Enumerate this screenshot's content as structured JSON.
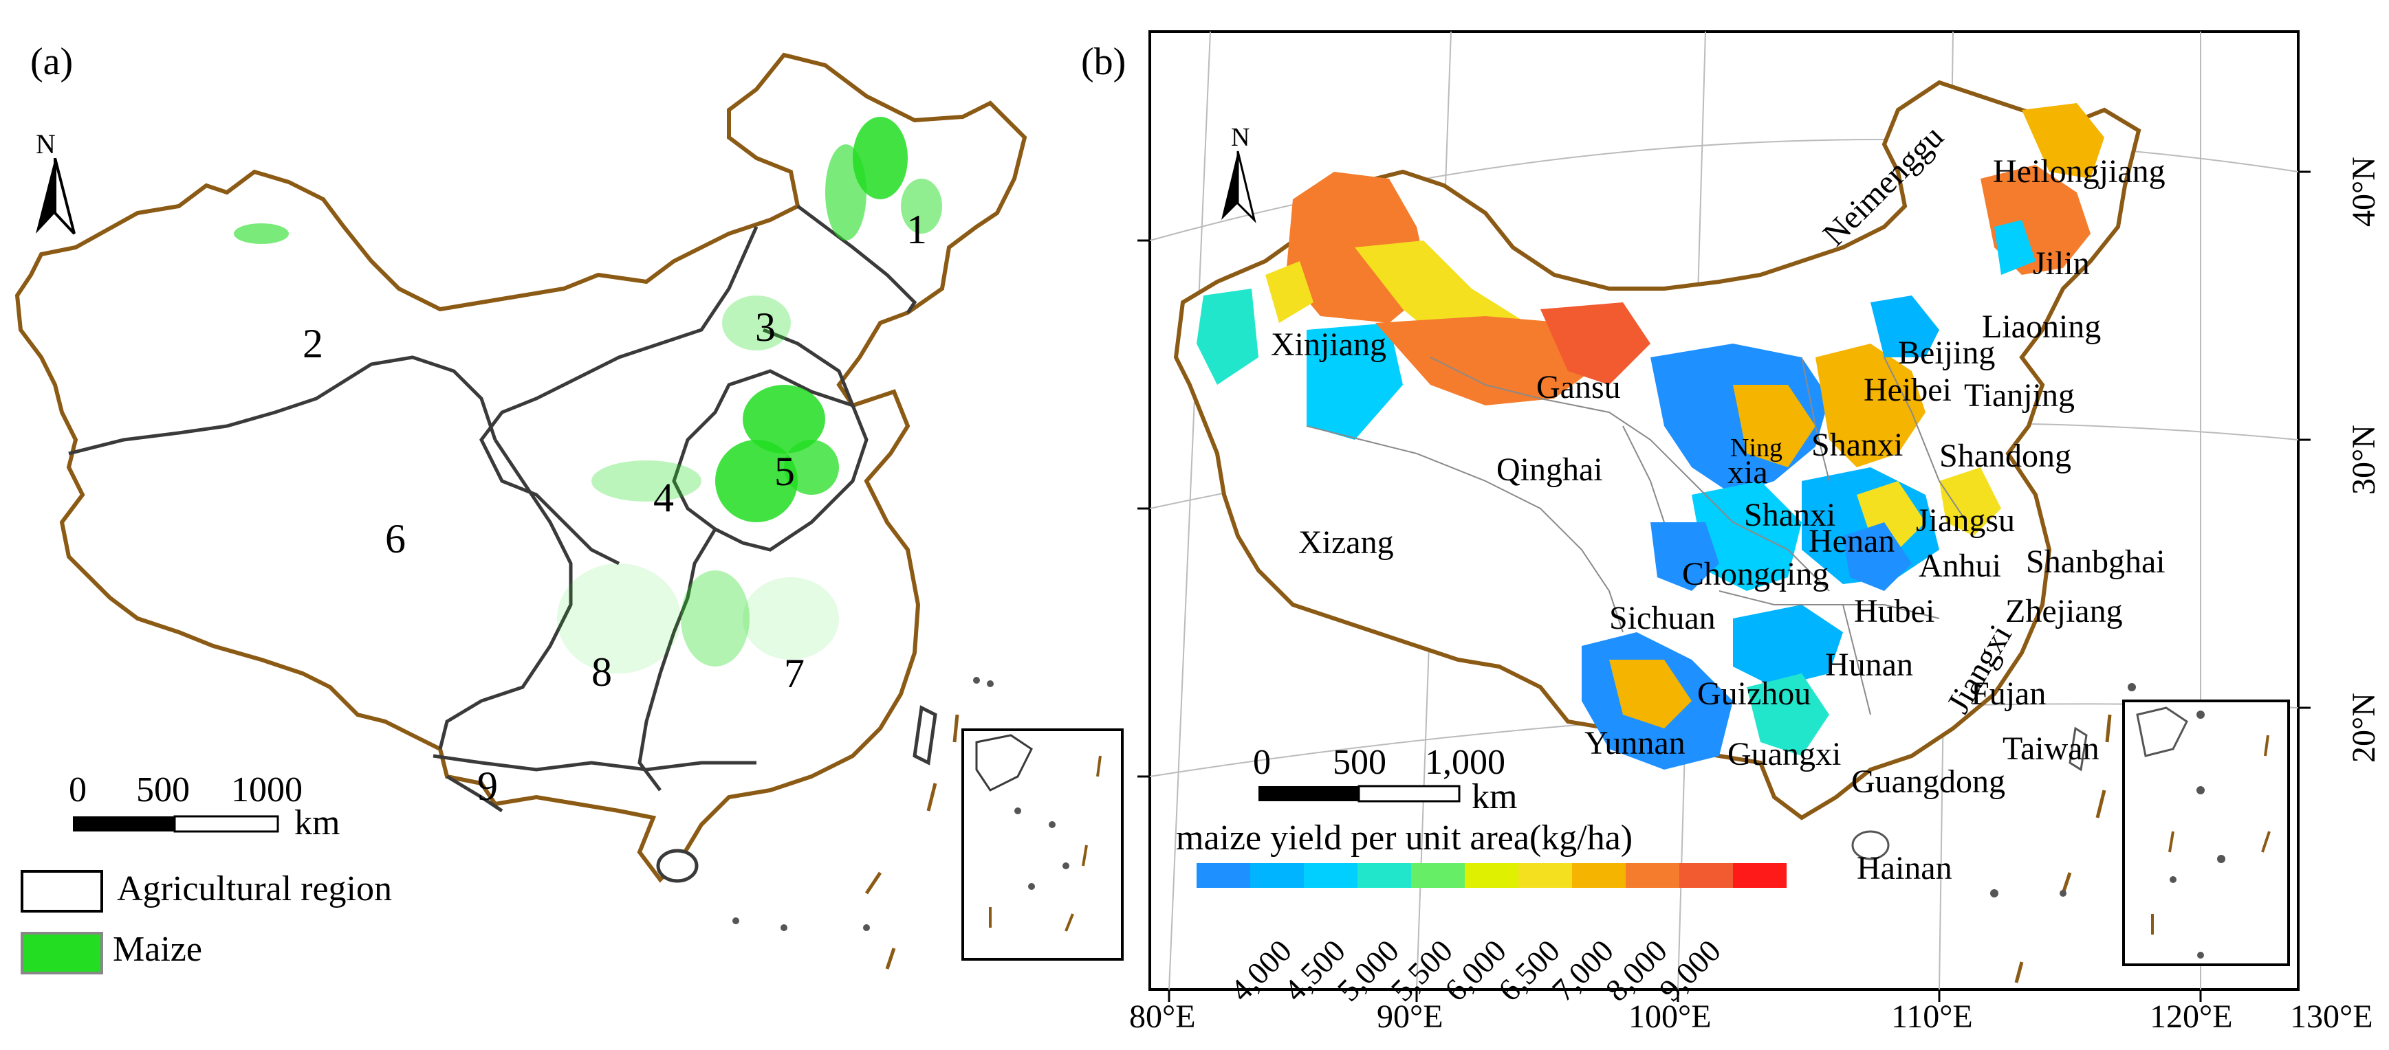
{
  "panel_a": {
    "label": "(a)",
    "north": "N",
    "regions": [
      "1",
      "2",
      "3",
      "4",
      "5",
      "6",
      "7",
      "8",
      "9"
    ],
    "scalebar": {
      "ticks": [
        "0",
        "500",
        "1000"
      ],
      "unit": "km"
    },
    "legend": [
      {
        "label": "Agricultural region",
        "color": "#ffffff"
      },
      {
        "label": "Maize",
        "color": "#22dd22"
      }
    ]
  },
  "panel_b": {
    "label": "(b)",
    "north": "N",
    "provinces": [
      "Heilongjiang",
      "Jilin",
      "Liaoning",
      "Neimenggu",
      "Beijing",
      "Tianjing",
      "Heibei",
      "Shandong",
      "Shanxi",
      "Ning",
      "xia",
      "Gansu",
      "Xinjiang",
      "Qinghai",
      "Xizang",
      "Shanxi",
      "Henan",
      "Jiangsu",
      "Anhui",
      "Shanbghai",
      "Chongqing",
      "Sichuan",
      "Hubei",
      "Zhejiang",
      "Jiangxi",
      "Hunan",
      "Guizhou",
      "Fujan",
      "Yunnan",
      "Guangxi",
      "Taiwan",
      "Guangdong",
      "Hainan"
    ],
    "scalebar": {
      "ticks": [
        "0",
        "500",
        "1,000"
      ],
      "unit": "km"
    },
    "legend_title": "maize yield per unit area(kg/ha)",
    "legend_colors": [
      "#1e90ff",
      "#00b4ff",
      "#00cfff",
      "#22e6cc",
      "#66ee66",
      "#dff000",
      "#f5e020",
      "#f5b400",
      "#f47c2c",
      "#f25a30",
      "#ff1a1a"
    ],
    "legend_ticks": [
      "4,000",
      "4,500",
      "5,000",
      "5,500",
      "6,000",
      "6,500",
      "7,000",
      "8,000",
      "9,000"
    ],
    "lon_labels": [
      "80°E",
      "90°E",
      "100°E",
      "110°E",
      "120°E",
      "130°E"
    ],
    "lat_labels": [
      "40°N",
      "30°N",
      "20°N"
    ]
  }
}
